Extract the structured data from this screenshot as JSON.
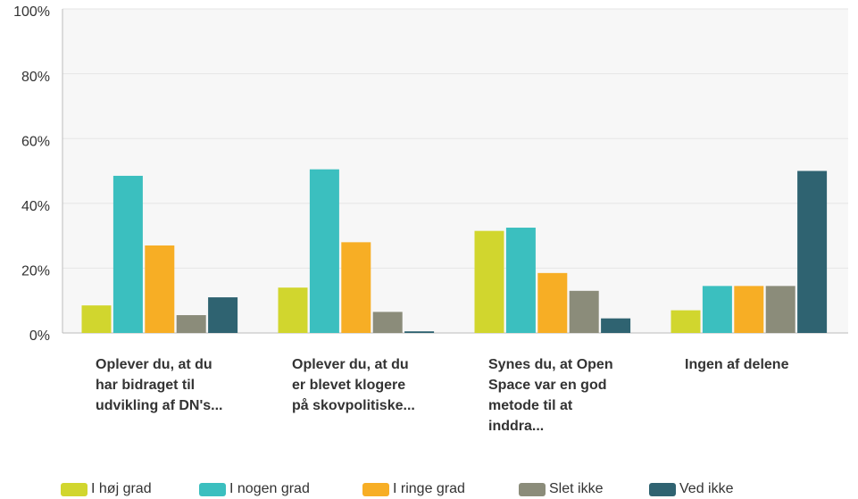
{
  "chart_data": {
    "type": "bar",
    "categories": [
      "Oplever du, at du har bidraget til udvikling af DN's...",
      "Oplever du, at du er blevet klogere på skovpolitiske...",
      "Synes du, at Open Space var en god metode til at inddra...",
      "Ingen af delene"
    ],
    "series": [
      {
        "name": "I høj grad",
        "color": "#d1d62e",
        "values": [
          8.5,
          14,
          31.5,
          7
        ]
      },
      {
        "name": "I nogen grad",
        "color": "#3bbfbf",
        "values": [
          48.5,
          50.5,
          32.5,
          14.5
        ]
      },
      {
        "name": "I ringe grad",
        "color": "#f7ae25",
        "values": [
          27,
          28,
          18.5,
          14.5
        ]
      },
      {
        "name": "Slet ikke",
        "color": "#8b8c7a",
        "values": [
          5.5,
          6.5,
          13,
          14.5
        ]
      },
      {
        "name": "Ved ikke",
        "color": "#2f6371",
        "values": [
          11,
          0.5,
          4.5,
          50
        ]
      }
    ],
    "ylim": [
      0,
      100
    ],
    "yticks": [
      {
        "value": 0,
        "label": "0%"
      },
      {
        "value": 20,
        "label": "20%"
      },
      {
        "value": 40,
        "label": "40%"
      },
      {
        "value": 60,
        "label": "60%"
      },
      {
        "value": 80,
        "label": "80%"
      },
      {
        "value": 100,
        "label": "100%"
      }
    ],
    "grid": true
  }
}
